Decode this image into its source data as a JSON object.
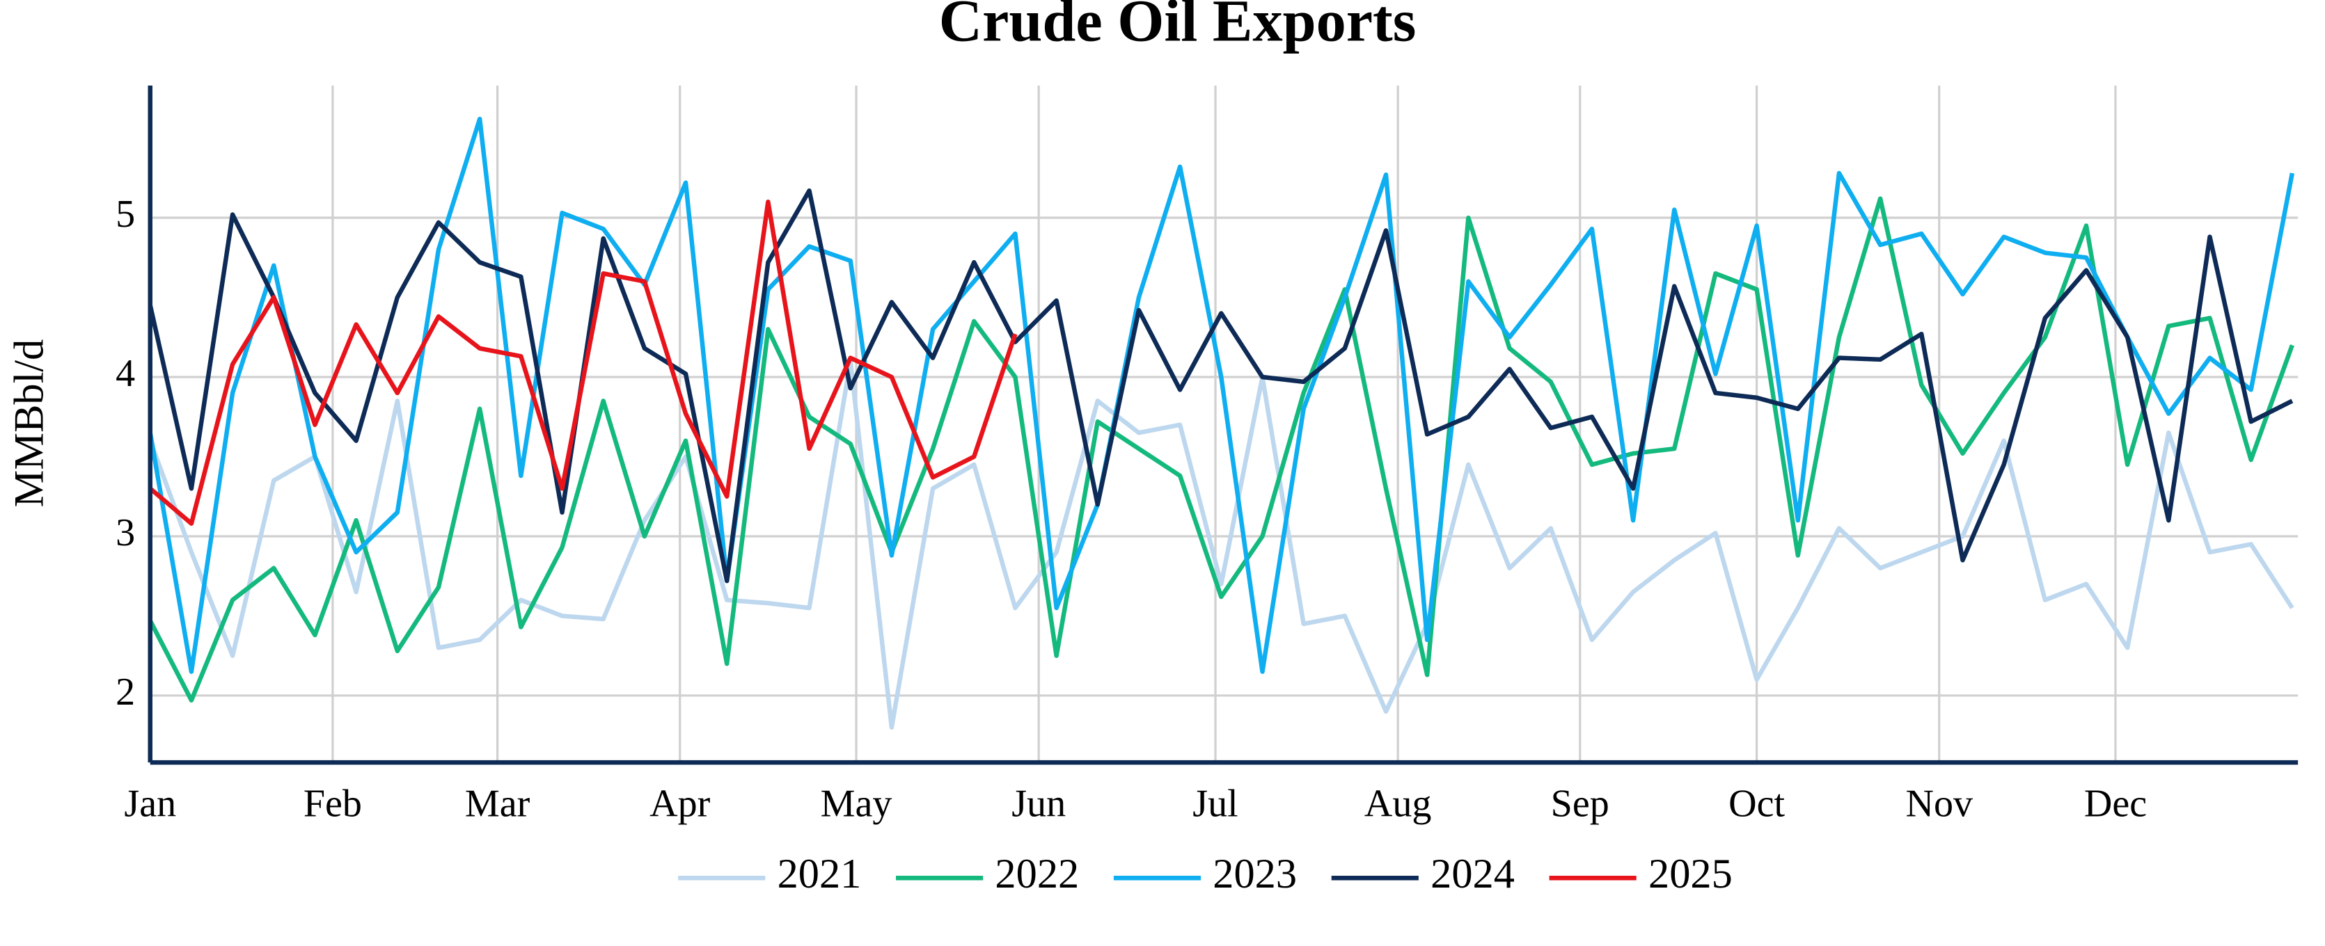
{
  "chart_data": {
    "type": "line",
    "title": "Crude Oil Exports",
    "y_label": "MMBbl/d",
    "x": [
      1,
      2,
      3,
      4,
      5,
      6,
      7,
      8,
      9,
      10,
      11,
      12,
      13,
      14,
      15,
      16,
      17,
      18,
      19,
      20,
      21,
      22,
      23,
      24,
      25,
      26,
      27,
      28,
      29,
      30,
      31,
      32,
      33,
      34,
      35,
      36,
      37,
      38,
      39,
      40,
      41,
      42,
      43,
      44,
      45,
      46,
      47,
      48,
      49,
      50,
      51,
      52,
      53
    ],
    "xlim": [
      1,
      53.14
    ],
    "xticks": [
      {
        "value": 1,
        "label": "Jan"
      },
      {
        "value": 5.43,
        "label": "Feb"
      },
      {
        "value": 9.43,
        "label": "Mar"
      },
      {
        "value": 13.86,
        "label": "Apr"
      },
      {
        "value": 18.14,
        "label": "May"
      },
      {
        "value": 22.57,
        "label": "Jun"
      },
      {
        "value": 26.86,
        "label": "Jul"
      },
      {
        "value": 31.29,
        "label": "Aug"
      },
      {
        "value": 35.71,
        "label": "Sep"
      },
      {
        "value": 40,
        "label": "Oct"
      },
      {
        "value": 44.43,
        "label": "Nov"
      },
      {
        "value": 48.71,
        "label": "Dec"
      }
    ],
    "ylim": [
      1.58,
      5.83
    ],
    "yticks": [
      2,
      3,
      4,
      5
    ],
    "grid": true,
    "legend": "bottom",
    "series": [
      {
        "name": "2021",
        "color": "#bdd7ee",
        "values": [
          3.6,
          2.9,
          2.25,
          3.35,
          3.5,
          2.65,
          3.85,
          2.3,
          2.35,
          2.6,
          2.5,
          2.48,
          3.1,
          3.5,
          2.6,
          2.58,
          2.55,
          4.1,
          1.8,
          3.3,
          3.45,
          2.55,
          2.9,
          3.85,
          3.65,
          3.7,
          2.7,
          4.0,
          2.45,
          2.5,
          1.9,
          2.45,
          3.45,
          2.8,
          3.05,
          2.35,
          2.65,
          2.85,
          3.02,
          2.1,
          2.55,
          3.05,
          2.8,
          2.9,
          3.0,
          3.6,
          2.6,
          2.7,
          2.3,
          3.65,
          2.9,
          2.95,
          2.55
        ]
      },
      {
        "name": "2022",
        "color": "#14b97e",
        "values": [
          2.47,
          1.97,
          2.6,
          2.8,
          2.38,
          3.1,
          2.28,
          2.68,
          3.8,
          2.43,
          2.93,
          3.85,
          3.0,
          3.6,
          2.2,
          4.3,
          3.75,
          3.58,
          2.9,
          3.55,
          4.35,
          4.0,
          2.25,
          3.72,
          3.55,
          3.38,
          2.62,
          3.0,
          3.9,
          4.55,
          3.3,
          2.13,
          5.0,
          4.18,
          3.97,
          3.45,
          3.52,
          3.55,
          4.65,
          4.55,
          2.88,
          4.25,
          5.12,
          3.95,
          3.52,
          3.9,
          4.25,
          4.95,
          3.45,
          4.32,
          4.37,
          3.48,
          4.2
        ]
      },
      {
        "name": "2023",
        "color": "#0eaef0",
        "values": [
          3.65,
          2.15,
          3.9,
          4.7,
          3.5,
          2.9,
          3.15,
          4.8,
          5.62,
          3.38,
          5.03,
          4.93,
          4.58,
          5.22,
          2.72,
          4.55,
          4.82,
          4.73,
          2.88,
          4.3,
          4.6,
          4.9,
          2.55,
          3.2,
          4.5,
          5.32,
          4.0,
          2.15,
          3.8,
          4.5,
          5.27,
          2.35,
          4.6,
          4.25,
          4.58,
          4.93,
          3.1,
          5.05,
          4.02,
          4.95,
          3.1,
          5.28,
          4.83,
          4.9,
          4.52,
          4.88,
          4.78,
          4.75,
          4.25,
          3.77,
          4.12,
          3.92,
          5.28
        ]
      },
      {
        "name": "2024",
        "color": "#0d2b56",
        "values": [
          4.45,
          3.3,
          5.02,
          4.5,
          3.9,
          3.6,
          4.5,
          4.97,
          4.72,
          4.63,
          3.15,
          4.87,
          4.18,
          4.02,
          2.72,
          4.72,
          5.17,
          3.93,
          4.47,
          4.12,
          4.72,
          4.22,
          4.48,
          3.2,
          4.42,
          3.92,
          4.4,
          4.0,
          3.97,
          4.18,
          4.92,
          3.64,
          3.75,
          4.05,
          3.68,
          3.75,
          3.3,
          4.57,
          3.9,
          3.87,
          3.8,
          4.12,
          4.11,
          4.27,
          2.85,
          3.45,
          4.37,
          4.67,
          4.25,
          3.1,
          4.88,
          3.72,
          3.85
        ]
      },
      {
        "name": "2025",
        "color": "#e8141b",
        "values": [
          3.3,
          3.08,
          4.08,
          4.5,
          3.7,
          4.33,
          3.9,
          4.38,
          4.18,
          4.13,
          3.3,
          4.65,
          4.6,
          3.77,
          3.25,
          5.1,
          3.55,
          4.12,
          4.0,
          3.37,
          3.5,
          4.27,
          null,
          null,
          null,
          null,
          null,
          null,
          null,
          null,
          null,
          null,
          null,
          null,
          null,
          null,
          null,
          null,
          null,
          null,
          null,
          null,
          null,
          null,
          null,
          null,
          null,
          null,
          null,
          null,
          null,
          null,
          null
        ]
      }
    ]
  }
}
